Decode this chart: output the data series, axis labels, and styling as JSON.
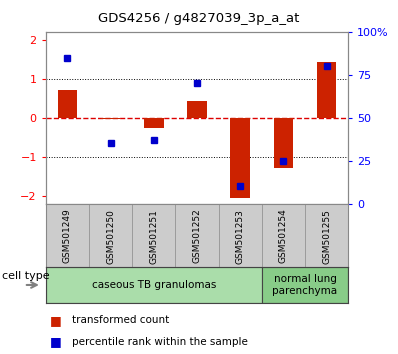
{
  "title": "GDS4256 / g4827039_3p_a_at",
  "samples": [
    "GSM501249",
    "GSM501250",
    "GSM501251",
    "GSM501252",
    "GSM501253",
    "GSM501254",
    "GSM501255"
  ],
  "transformed_count": [
    0.72,
    -0.03,
    -0.27,
    0.42,
    -2.05,
    -1.3,
    1.42
  ],
  "percentile_rank": [
    0.85,
    0.35,
    0.37,
    0.7,
    0.1,
    0.25,
    0.8
  ],
  "ylim": [
    -2.2,
    2.2
  ],
  "yticks_left": [
    -2,
    -1,
    0,
    1,
    2
  ],
  "yticks_right": [
    0,
    25,
    50,
    75,
    100
  ],
  "bar_color": "#CC2200",
  "dot_color": "#0000CC",
  "groups": [
    {
      "label": "caseous TB granulomas",
      "start": 0,
      "end": 4,
      "color": "#AADDAA"
    },
    {
      "label": "normal lung\nparenchyma",
      "start": 5,
      "end": 6,
      "color": "#88CC88"
    }
  ],
  "cell_type_label": "cell type",
  "legend_bar_label": "transformed count",
  "legend_dot_label": "percentile rank within the sample",
  "hline_color": "#DD0000",
  "dotted_hline_color": "#000000",
  "background_color": "#FFFFFF",
  "plot_bg_color": "#FFFFFF",
  "tick_label_area_color": "#CCCCCC",
  "bar_width": 0.45
}
